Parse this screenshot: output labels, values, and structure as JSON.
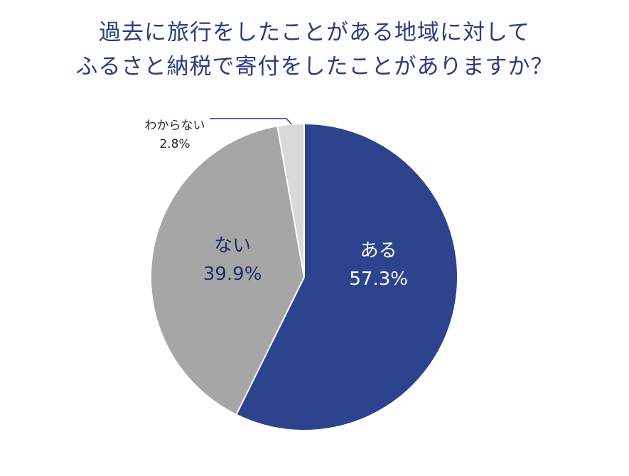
{
  "title_lines": [
    "過去に旅行をしたことがある地域に対して",
    "ふるさと納税で寄付をしたことがありますか？"
  ],
  "chart_data": {
    "type": "pie",
    "title": "過去に旅行をしたことがある地域に対して ふるさと納税で寄付をしたことがありますか？",
    "slices": [
      {
        "label": "ある",
        "value": 57.3,
        "value_label": "57.3%",
        "color": "#2d438e",
        "text_color": "#ffffff"
      },
      {
        "label": "ない",
        "value": 39.9,
        "value_label": "39.9%",
        "color": "#a6a6a6",
        "text_color": "#1f2f6b"
      },
      {
        "label": "わからない",
        "value": 2.8,
        "value_label": "2.8%",
        "color": "#d9d9d9",
        "text_color": "#2b2b2b"
      }
    ],
    "start": "12 o'clock",
    "direction": "clockwise",
    "legend": "none"
  }
}
